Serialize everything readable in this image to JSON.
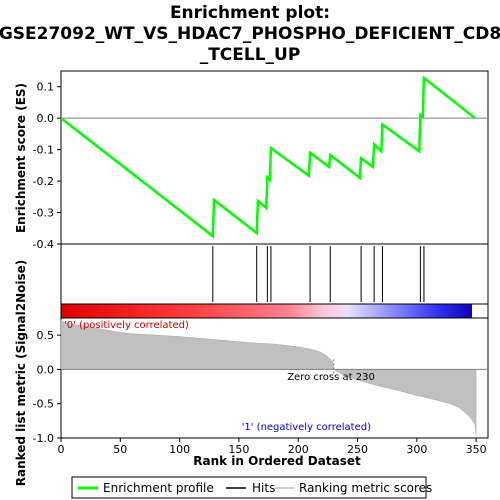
{
  "chart_data": {
    "type": "line",
    "title_lines": [
      "Enrichment plot:",
      "GSE27092_WT_VS_HDAC7_PHOSPHO_DEFICIENT_CD8",
      "_TCELL_UP"
    ],
    "es_panel": {
      "ylabel": "Enrichment score (ES)",
      "ylim": [
        -0.4,
        0.15
      ],
      "yticks": [
        -0.4,
        -0.3,
        -0.2,
        -0.1,
        0.0,
        0.1
      ],
      "ytick_labels": [
        "-0.4",
        "-0.3",
        "-0.2",
        "-0.1",
        "0.0",
        "0.1"
      ],
      "points": [
        [
          0,
          0.0
        ],
        [
          128,
          -0.375
        ],
        [
          129,
          -0.26
        ],
        [
          165,
          -0.365
        ],
        [
          166,
          -0.263
        ],
        [
          173,
          -0.285
        ],
        [
          174,
          -0.188
        ],
        [
          176,
          -0.195
        ],
        [
          177,
          -0.095
        ],
        [
          209,
          -0.183
        ],
        [
          210,
          -0.11
        ],
        [
          226,
          -0.155
        ],
        [
          227,
          -0.117
        ],
        [
          252,
          -0.19
        ],
        [
          253,
          -0.128
        ],
        [
          263,
          -0.155
        ],
        [
          264,
          -0.083
        ],
        [
          270,
          -0.105
        ],
        [
          271,
          -0.02
        ],
        [
          302,
          -0.105
        ],
        [
          303,
          0.01
        ],
        [
          305,
          0.005
        ],
        [
          306,
          0.128
        ],
        [
          349,
          0.0
        ]
      ]
    },
    "hits": [
      128,
      165,
      174,
      177,
      210,
      227,
      253,
      264,
      271,
      303,
      306
    ],
    "metric_panel": {
      "ylabel": "Ranked list metric (Signal2Noise)",
      "xlabel": "Rank in Ordered Dataset",
      "ylim": [
        -1.0,
        0.75
      ],
      "yticks": [
        -1.0,
        -0.5,
        0.0,
        0.5
      ],
      "ytick_labels": [
        "-1.0",
        "-0.5",
        "0.0",
        "0.5"
      ],
      "xlim": [
        0,
        360
      ],
      "xticks": [
        0,
        50,
        100,
        150,
        200,
        250,
        300,
        350
      ],
      "xtick_labels": [
        "0",
        "50",
        "100",
        "150",
        "200",
        "250",
        "300",
        "350"
      ],
      "profile": [
        [
          0,
          0.72
        ],
        [
          3,
          0.68
        ],
        [
          10,
          0.66
        ],
        [
          20,
          0.63
        ],
        [
          30,
          0.6
        ],
        [
          40,
          0.57
        ],
        [
          50,
          0.54
        ],
        [
          60,
          0.52
        ],
        [
          80,
          0.5
        ],
        [
          100,
          0.48
        ],
        [
          120,
          0.45
        ],
        [
          140,
          0.42
        ],
        [
          160,
          0.39
        ],
        [
          180,
          0.37
        ],
        [
          200,
          0.33
        ],
        [
          210,
          0.3
        ],
        [
          218,
          0.26
        ],
        [
          224,
          0.2
        ],
        [
          229,
          0.12
        ],
        [
          230,
          0.0
        ],
        [
          240,
          -0.1
        ],
        [
          255,
          -0.18
        ],
        [
          270,
          -0.25
        ],
        [
          285,
          -0.31
        ],
        [
          300,
          -0.38
        ],
        [
          315,
          -0.44
        ],
        [
          328,
          -0.5
        ],
        [
          335,
          -0.55
        ],
        [
          340,
          -0.62
        ],
        [
          345,
          -0.7
        ],
        [
          349,
          -0.8
        ],
        [
          350,
          -0.95
        ]
      ],
      "zero_cross_label": "Zero cross at 230",
      "pos_label": "'0' (positively correlated)",
      "neg_label": "'1' (negatively correlated)"
    },
    "colors": {
      "profile": "#00ff00",
      "hits": "#000000",
      "metric_fill": "#c0c0c0",
      "pos_label": "#cc0000",
      "neg_label": "#0000cc"
    },
    "legend": {
      "placement": "bottom",
      "items": [
        "Enrichment profile",
        "Hits",
        "Ranking metric scores"
      ]
    }
  }
}
